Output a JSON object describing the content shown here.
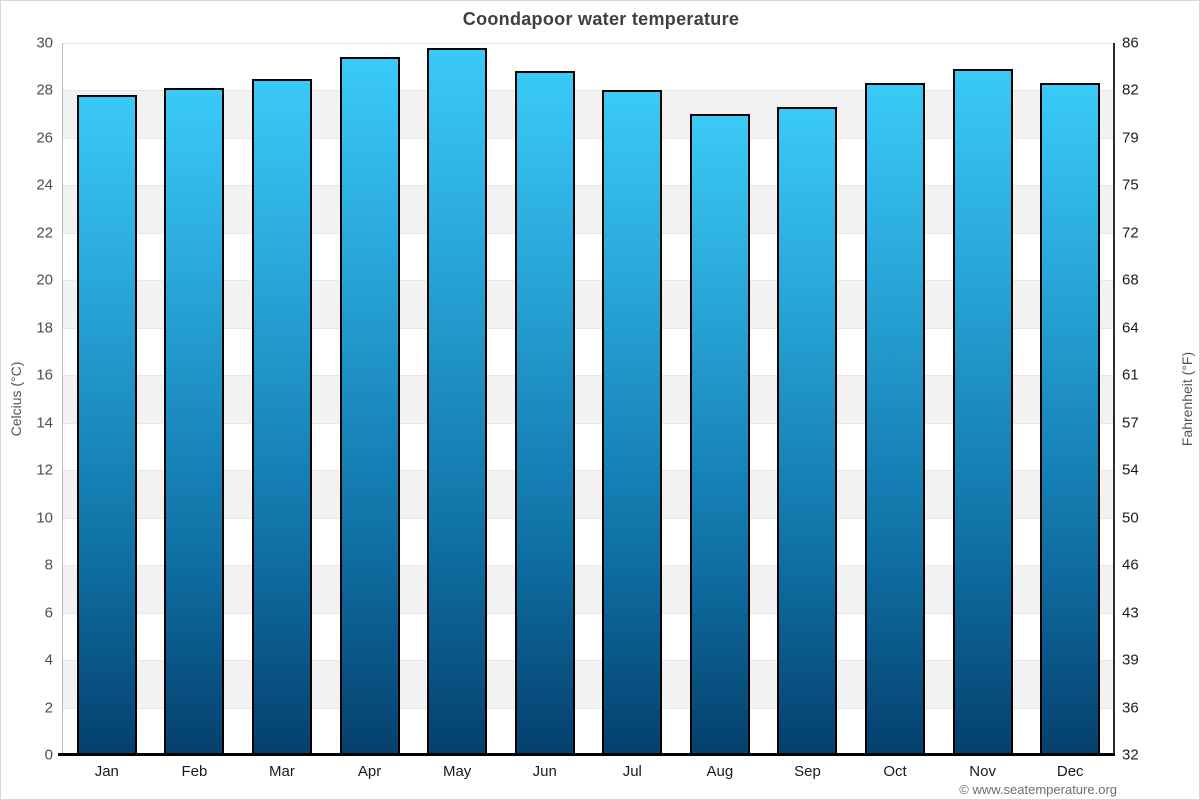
{
  "title": "Coondapoor water temperature",
  "copyright": "© www.seatemperature.org",
  "chart_data": {
    "type": "bar",
    "title": "Coondapoor water temperature",
    "categories": [
      "Jan",
      "Feb",
      "Mar",
      "Apr",
      "May",
      "Jun",
      "Jul",
      "Aug",
      "Sep",
      "Oct",
      "Nov",
      "Dec"
    ],
    "values": [
      27.8,
      28.1,
      28.5,
      29.4,
      29.8,
      28.8,
      28.0,
      27.0,
      27.3,
      28.3,
      28.9,
      28.3
    ],
    "ylabel_left": "Celcius (°C)",
    "ylabel_right": "Fahrenheit (°F)",
    "ylim_celsius": [
      0,
      30
    ],
    "celsius_tick_step": 2,
    "celsius_ticks_top_to_bottom": [
      30,
      28,
      26,
      24,
      22,
      20,
      18,
      16,
      14,
      12,
      10,
      8,
      6,
      4,
      2,
      0
    ],
    "fahrenheit_ticks_top_to_bottom": [
      86,
      82,
      79,
      75,
      72,
      68,
      64,
      61,
      57,
      54,
      50,
      46,
      43,
      39,
      36,
      32
    ],
    "grid": "alternating horizontal bands every 2°C, white/gray, gridline at each tick",
    "legend": "none",
    "colors": {
      "bar_gradient_top": "#3acaf8",
      "bar_gradient_bottom": "#05406e",
      "bar_border": "#000000",
      "band_gray": "#f2f2f2",
      "band_white": "#ffffff",
      "gridline": "#e7e7e7",
      "title_text": "#3f3f3f",
      "axis_text": "#4d4d4d"
    }
  }
}
